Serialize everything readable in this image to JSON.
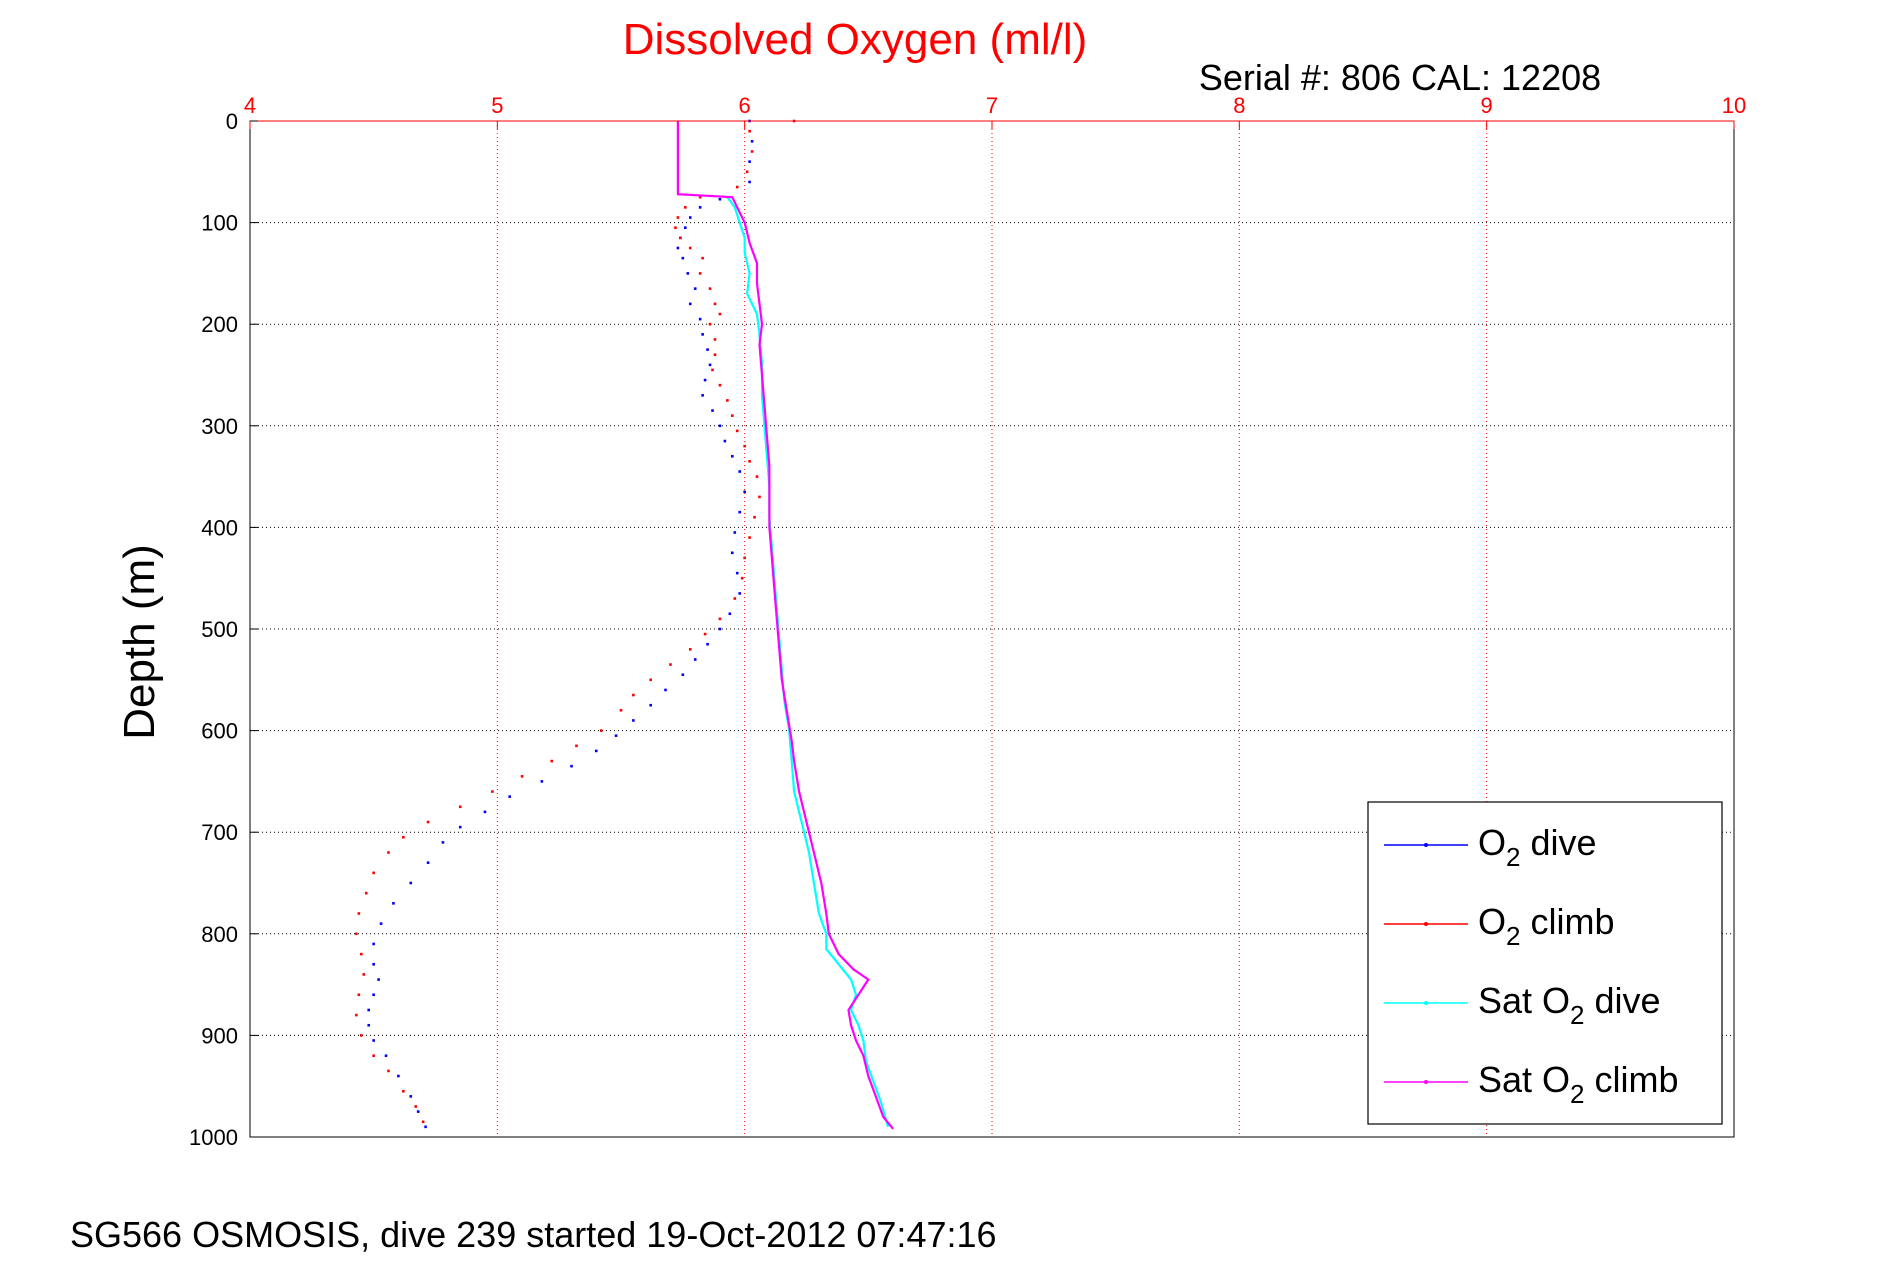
{
  "chart_data": {
    "type": "scatter",
    "title": "Dissolved Oxygen (ml/l)",
    "subtitle": "Serial #: 806  CAL: 12208",
    "ylabel": "Depth (m)",
    "footer": "SG566 OSMOSIS, dive 239 started 19-Oct-2012 07:47:16",
    "xlim": [
      4,
      10
    ],
    "ylim": [
      0,
      1000
    ],
    "y_reversed": true,
    "x_axis_position": "top",
    "xticks": [
      "4",
      "5",
      "6",
      "7",
      "8",
      "9",
      "10"
    ],
    "yticks": [
      "0",
      "100",
      "200",
      "300",
      "400",
      "500",
      "600",
      "700",
      "800",
      "900",
      "1000"
    ],
    "grid": true,
    "legend_position": "bottom-right",
    "colors": {
      "title": "#ff0000",
      "x_tick_labels": "#ff0000",
      "x_grid": "#ff0000",
      "y_grid": "#000000"
    },
    "series": [
      {
        "name": "O2 dive",
        "legend_base": "O",
        "legend_sub": "2",
        "legend_rest": " dive",
        "color": "#0000ff",
        "style": "points",
        "points": [
          [
            6.02,
            0
          ],
          [
            6.03,
            20
          ],
          [
            6.02,
            40
          ],
          [
            6.02,
            60
          ],
          [
            5.9,
            77
          ],
          [
            5.82,
            85
          ],
          [
            5.78,
            95
          ],
          [
            5.76,
            105
          ],
          [
            5.74,
            115
          ],
          [
            5.73,
            125
          ],
          [
            5.75,
            135
          ],
          [
            5.77,
            150
          ],
          [
            5.8,
            165
          ],
          [
            5.78,
            180
          ],
          [
            5.82,
            195
          ],
          [
            5.83,
            210
          ],
          [
            5.85,
            225
          ],
          [
            5.86,
            240
          ],
          [
            5.84,
            255
          ],
          [
            5.83,
            270
          ],
          [
            5.87,
            285
          ],
          [
            5.9,
            300
          ],
          [
            5.92,
            315
          ],
          [
            5.95,
            330
          ],
          [
            5.98,
            345
          ],
          [
            6.0,
            365
          ],
          [
            5.98,
            385
          ],
          [
            5.96,
            405
          ],
          [
            5.95,
            425
          ],
          [
            5.97,
            445
          ],
          [
            5.98,
            465
          ],
          [
            5.94,
            485
          ],
          [
            5.9,
            500
          ],
          [
            5.85,
            515
          ],
          [
            5.8,
            530
          ],
          [
            5.75,
            545
          ],
          [
            5.68,
            560
          ],
          [
            5.62,
            575
          ],
          [
            5.55,
            590
          ],
          [
            5.48,
            605
          ],
          [
            5.4,
            620
          ],
          [
            5.3,
            635
          ],
          [
            5.18,
            650
          ],
          [
            5.05,
            665
          ],
          [
            4.95,
            680
          ],
          [
            4.85,
            695
          ],
          [
            4.78,
            710
          ],
          [
            4.72,
            730
          ],
          [
            4.65,
            750
          ],
          [
            4.58,
            770
          ],
          [
            4.53,
            790
          ],
          [
            4.5,
            810
          ],
          [
            4.5,
            830
          ],
          [
            4.52,
            845
          ],
          [
            4.5,
            860
          ],
          [
            4.48,
            875
          ],
          [
            4.48,
            890
          ],
          [
            4.5,
            905
          ],
          [
            4.55,
            920
          ],
          [
            4.6,
            940
          ],
          [
            4.65,
            960
          ],
          [
            4.68,
            975
          ],
          [
            4.71,
            990
          ]
        ]
      },
      {
        "name": "O2 climb",
        "legend_base": "O",
        "legend_sub": "2",
        "legend_rest": " climb",
        "color": "#ff0000",
        "style": "points",
        "points": [
          [
            6.2,
            0
          ],
          [
            6.02,
            10
          ],
          [
            6.03,
            30
          ],
          [
            6.01,
            50
          ],
          [
            5.97,
            65
          ],
          [
            5.82,
            75
          ],
          [
            5.76,
            85
          ],
          [
            5.73,
            95
          ],
          [
            5.72,
            105
          ],
          [
            5.74,
            115
          ],
          [
            5.78,
            125
          ],
          [
            5.83,
            135
          ],
          [
            5.82,
            150
          ],
          [
            5.86,
            165
          ],
          [
            5.88,
            180
          ],
          [
            5.9,
            190
          ],
          [
            5.86,
            200
          ],
          [
            5.88,
            215
          ],
          [
            5.88,
            230
          ],
          [
            5.87,
            245
          ],
          [
            5.9,
            260
          ],
          [
            5.93,
            275
          ],
          [
            5.95,
            290
          ],
          [
            5.97,
            305
          ],
          [
            6.0,
            320
          ],
          [
            6.02,
            335
          ],
          [
            6.05,
            350
          ],
          [
            6.06,
            370
          ],
          [
            6.04,
            390
          ],
          [
            6.02,
            410
          ],
          [
            6.0,
            430
          ],
          [
            5.99,
            450
          ],
          [
            5.96,
            470
          ],
          [
            5.9,
            490
          ],
          [
            5.84,
            505
          ],
          [
            5.78,
            520
          ],
          [
            5.7,
            535
          ],
          [
            5.62,
            550
          ],
          [
            5.55,
            565
          ],
          [
            5.5,
            580
          ],
          [
            5.42,
            600
          ],
          [
            5.32,
            615
          ],
          [
            5.22,
            630
          ],
          [
            5.1,
            645
          ],
          [
            4.98,
            660
          ],
          [
            4.85,
            675
          ],
          [
            4.72,
            690
          ],
          [
            4.62,
            705
          ],
          [
            4.56,
            720
          ],
          [
            4.5,
            740
          ],
          [
            4.47,
            760
          ],
          [
            4.44,
            780
          ],
          [
            4.43,
            800
          ],
          [
            4.45,
            820
          ],
          [
            4.46,
            840
          ],
          [
            4.44,
            860
          ],
          [
            4.43,
            880
          ],
          [
            4.45,
            900
          ],
          [
            4.5,
            920
          ],
          [
            4.56,
            935
          ],
          [
            4.62,
            955
          ],
          [
            4.67,
            970
          ],
          [
            4.7,
            985
          ]
        ]
      },
      {
        "name": "Sat O2 dive",
        "legend_base": "Sat O",
        "legend_sub": "2",
        "legend_rest": " dive",
        "color": "#00ffff",
        "style": "line",
        "points": [
          [
            5.93,
            75
          ],
          [
            5.96,
            85
          ],
          [
            5.98,
            100
          ],
          [
            6.0,
            115
          ],
          [
            6.0,
            130
          ],
          [
            6.02,
            150
          ],
          [
            6.01,
            170
          ],
          [
            6.05,
            190
          ],
          [
            6.06,
            210
          ],
          [
            6.07,
            240
          ],
          [
            6.07,
            270
          ],
          [
            6.08,
            300
          ],
          [
            6.09,
            330
          ],
          [
            6.1,
            360
          ],
          [
            6.1,
            390
          ],
          [
            6.11,
            420
          ],
          [
            6.12,
            450
          ],
          [
            6.13,
            480
          ],
          [
            6.14,
            510
          ],
          [
            6.15,
            540
          ],
          [
            6.16,
            570
          ],
          [
            6.18,
            600
          ],
          [
            6.19,
            630
          ],
          [
            6.2,
            660
          ],
          [
            6.23,
            690
          ],
          [
            6.26,
            720
          ],
          [
            6.28,
            750
          ],
          [
            6.3,
            780
          ],
          [
            6.33,
            800
          ],
          [
            6.33,
            815
          ],
          [
            6.38,
            830
          ],
          [
            6.43,
            845
          ],
          [
            6.45,
            860
          ],
          [
            6.43,
            875
          ],
          [
            6.46,
            890
          ],
          [
            6.48,
            905
          ],
          [
            6.49,
            925
          ],
          [
            6.52,
            945
          ],
          [
            6.55,
            965
          ],
          [
            6.58,
            990
          ]
        ]
      },
      {
        "name": "Sat O2 climb",
        "legend_base": "Sat O",
        "legend_sub": "2",
        "legend_rest": " climb",
        "color": "#ff00ff",
        "style": "line",
        "points": [
          [
            5.73,
            0
          ],
          [
            5.73,
            72
          ],
          [
            5.95,
            75
          ],
          [
            5.97,
            85
          ],
          [
            6.0,
            100
          ],
          [
            6.02,
            120
          ],
          [
            6.05,
            140
          ],
          [
            6.05,
            160
          ],
          [
            6.06,
            180
          ],
          [
            6.07,
            200
          ],
          [
            6.06,
            220
          ],
          [
            6.07,
            250
          ],
          [
            6.08,
            280
          ],
          [
            6.09,
            310
          ],
          [
            6.1,
            340
          ],
          [
            6.1,
            370
          ],
          [
            6.1,
            400
          ],
          [
            6.11,
            430
          ],
          [
            6.12,
            460
          ],
          [
            6.13,
            490
          ],
          [
            6.14,
            520
          ],
          [
            6.15,
            550
          ],
          [
            6.17,
            580
          ],
          [
            6.19,
            610
          ],
          [
            6.2,
            630
          ],
          [
            6.22,
            660
          ],
          [
            6.25,
            690
          ],
          [
            6.28,
            720
          ],
          [
            6.31,
            750
          ],
          [
            6.33,
            780
          ],
          [
            6.34,
            800
          ],
          [
            6.38,
            820
          ],
          [
            6.44,
            835
          ],
          [
            6.5,
            845
          ],
          [
            6.46,
            860
          ],
          [
            6.42,
            875
          ],
          [
            6.43,
            890
          ],
          [
            6.45,
            905
          ],
          [
            6.48,
            920
          ],
          [
            6.5,
            940
          ],
          [
            6.53,
            960
          ],
          [
            6.56,
            980
          ],
          [
            6.6,
            992
          ]
        ]
      }
    ]
  }
}
